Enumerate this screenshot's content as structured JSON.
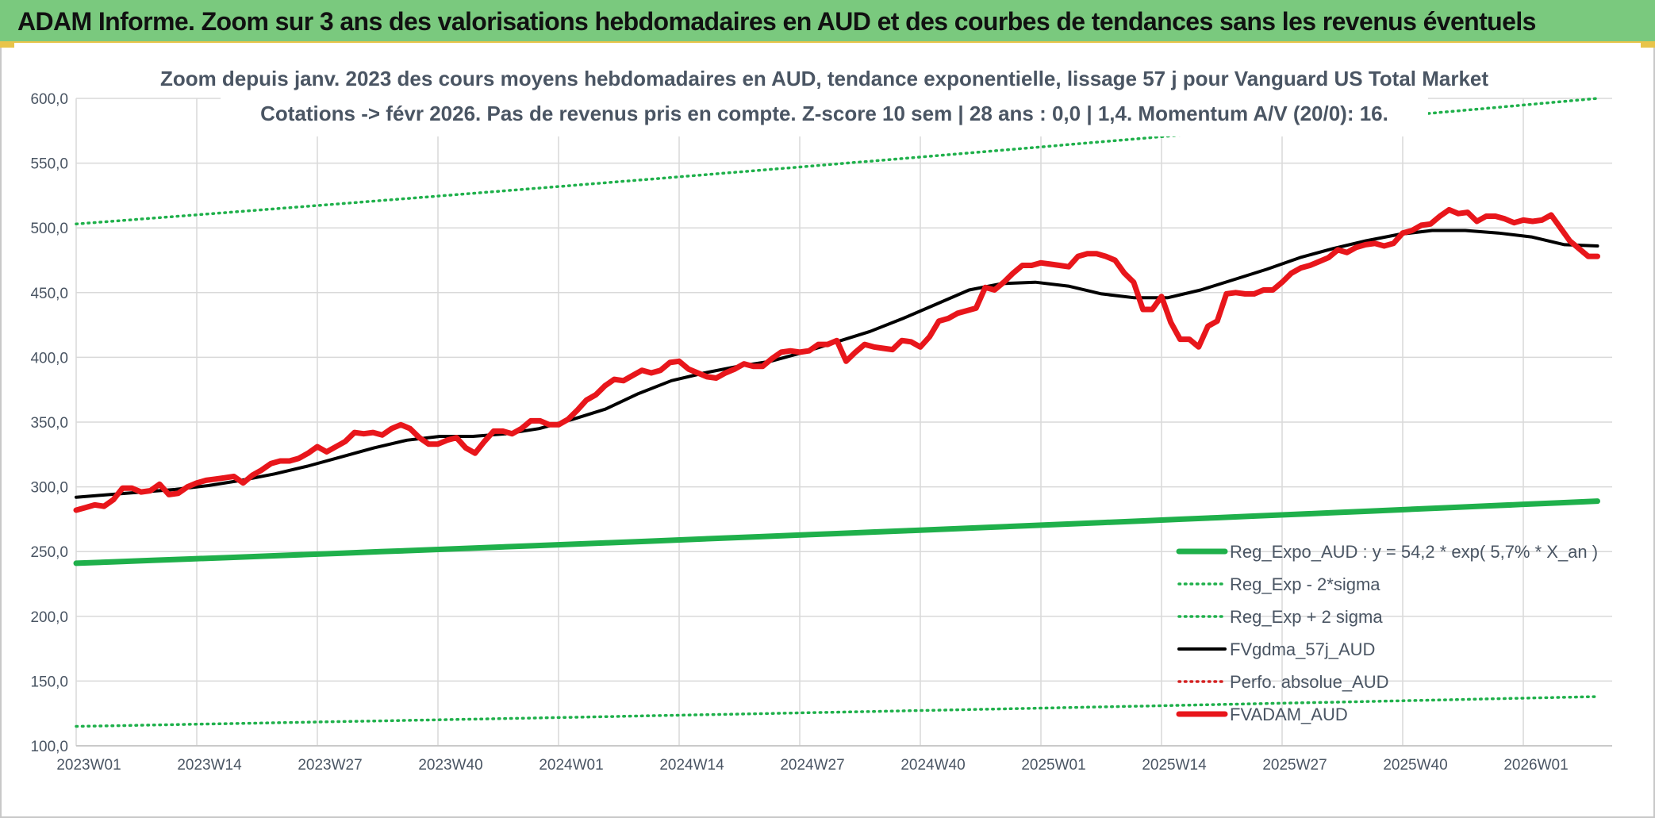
{
  "banner": {
    "title": "ADAM Informe. Zoom sur 3 ans des valorisations hebdomadaires en AUD et des courbes de tendances sans les revenus éventuels"
  },
  "colors": {
    "banner_bg": "#7ac97e",
    "banner_accent": "#e8c44a",
    "trend": "#1fb04b",
    "smooth": "#000000",
    "price": "#e8161b",
    "perfo": "#d42020",
    "grid": "#d9d9d9",
    "text": "#4a5563"
  },
  "chart_data": {
    "type": "line",
    "title": "Zoom depuis janv. 2023 des cours moyens hebdomadaires en AUD, tendance exponentielle, lissage 57 j pour Vanguard US Total Market",
    "subtitle": "Cotations -> févr 2026. Pas de revenus pris en compte. Z-score 10 sem | 28 ans : 0,0 | 1,4. Momentum A/V (20/0): 16.",
    "xlabel": "",
    "ylabel": "",
    "ylim": [
      100,
      600
    ],
    "yticks": [
      "100,0",
      "150,0",
      "200,0",
      "250,0",
      "300,0",
      "350,0",
      "400,0",
      "450,0",
      "500,0",
      "550,0",
      "600,0"
    ],
    "x_tick_labels": [
      "2023W01",
      "2023W14",
      "2023W27",
      "2023W40",
      "2024W01",
      "2024W14",
      "2024W27",
      "2024W40",
      "2025W01",
      "2025W14",
      "2025W27",
      "2025W40",
      "2026W01"
    ],
    "weeks_per_tick": 13,
    "total_weeks": 164,
    "grid": true,
    "legend_position": "bottom-right",
    "series": [
      {
        "name": "Reg_Expo_AUD : y = 54,2 * exp( 5,7% *  X_an )",
        "style": "solid-thick",
        "color": "#1fb04b",
        "values": [
          241,
          289
        ]
      },
      {
        "name": "Reg_Exp - 2*sigma",
        "style": "dotted",
        "color": "#1fb04b",
        "values": [
          115,
          138
        ]
      },
      {
        "name": "Reg_Exp + 2 sigma",
        "style": "dotted",
        "color": "#1fb04b",
        "values": [
          503,
          600
        ]
      },
      {
        "name": "FVgdma_57j_AUD",
        "style": "solid",
        "color": "#000000",
        "values": [
          292,
          294,
          296,
          298,
          301,
          305,
          310,
          316,
          323,
          330,
          336,
          339,
          339,
          341,
          345,
          352,
          360,
          372,
          382,
          388,
          393,
          397,
          404,
          412,
          420,
          430,
          441,
          452,
          457,
          458,
          455,
          449,
          446,
          446,
          452,
          460,
          468,
          477,
          484,
          490,
          495,
          498,
          498,
          496,
          493,
          487,
          486
        ]
      },
      {
        "name": "Perfo. absolue_AUD",
        "style": "dotted",
        "color": "#d42020",
        "values": []
      },
      {
        "name": "FVADAM_AUD",
        "style": "solid-thick",
        "color": "#e8161b",
        "values": [
          282,
          284,
          286,
          285,
          290,
          299,
          299,
          296,
          297,
          302,
          294,
          295,
          300,
          303,
          305,
          306,
          307,
          308,
          303,
          309,
          313,
          318,
          320,
          320,
          322,
          326,
          331,
          327,
          331,
          335,
          342,
          341,
          342,
          340,
          345,
          348,
          345,
          338,
          333,
          333,
          336,
          338,
          330,
          326,
          335,
          343,
          343,
          341,
          345,
          351,
          351,
          348,
          348,
          352,
          359,
          367,
          371,
          378,
          383,
          382,
          386,
          390,
          388,
          390,
          396,
          397,
          391,
          388,
          385,
          384,
          388,
          391,
          395,
          393,
          393,
          399,
          404,
          405,
          404,
          405,
          410,
          410,
          413,
          397,
          404,
          410,
          408,
          407,
          406,
          413,
          412,
          408,
          416,
          428,
          430,
          434,
          436,
          438,
          454,
          452,
          458,
          465,
          471,
          471,
          473,
          472,
          471,
          470,
          478,
          480,
          480,
          478,
          475,
          465,
          458,
          437,
          437,
          447,
          427,
          414,
          414,
          408,
          424,
          428,
          449,
          450,
          449,
          449,
          452,
          452,
          458,
          465,
          469,
          471,
          474,
          477,
          483,
          481,
          485,
          487,
          488,
          486,
          488,
          496,
          498,
          502,
          503,
          509,
          514,
          511,
          512,
          505,
          509,
          509,
          507,
          504,
          506,
          505,
          506,
          510,
          500,
          490,
          484,
          478,
          478
        ]
      }
    ]
  }
}
